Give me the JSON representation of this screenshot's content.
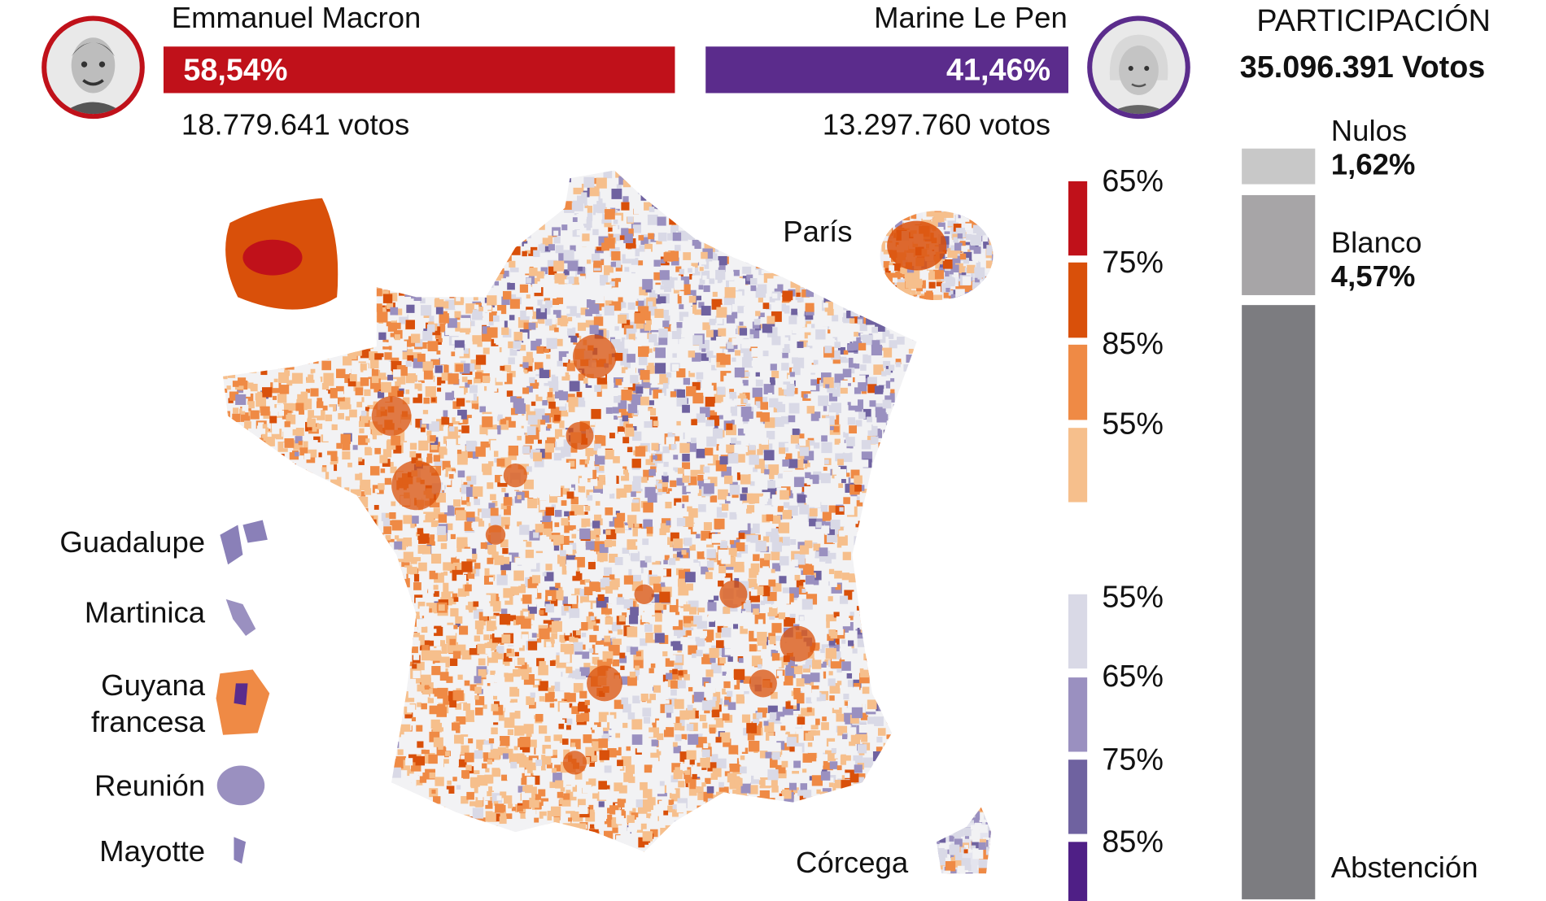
{
  "candidates": {
    "macron": {
      "name": "Emmanuel Macron",
      "percent": "58,54%",
      "votes": "18.779.641 votos",
      "color": "#c0111a",
      "share": 58.54
    },
    "lepen": {
      "name": "Marine Le Pen",
      "percent": "41,46%",
      "votes": "13.297.760 votos",
      "color": "#5b2c8c",
      "share": 41.46
    }
  },
  "participation": {
    "title": "PARTICIPACIÓN",
    "total": "35.096.391 Votos",
    "segments": [
      {
        "label": "Nulos",
        "value": "1,62%",
        "color": "#c8c8c8"
      },
      {
        "label": "Blanco",
        "value": "4,57%",
        "color": "#a7a5a7"
      },
      {
        "label": "Abstención",
        "color": "#7c7c80"
      }
    ]
  },
  "legend": {
    "macron_steps": [
      {
        "label": "65%",
        "color": "#c0111a"
      },
      {
        "label": "75%",
        "color": "#d9500a"
      },
      {
        "label": "85%",
        "color": "#ef8a45"
      },
      {
        "label": "55%",
        "color": "#f6bf8c"
      }
    ],
    "lepen_steps": [
      {
        "label": "55%",
        "color": "#d9d9e6"
      },
      {
        "label": "65%",
        "color": "#9a90c0"
      },
      {
        "label": "75%",
        "color": "#6f62a0"
      },
      {
        "label": "85%",
        "color": "#4f1f86"
      }
    ]
  },
  "map": {
    "paris_label": "París",
    "corsica_label": "Córcega",
    "overseas": [
      {
        "label": "Guadalupe"
      },
      {
        "label": "Martinica"
      },
      {
        "label": "Guyana\nfrancesa",
        "line1": "Guyana",
        "line2": "francesa"
      },
      {
        "label": "Reunión"
      },
      {
        "label": "Mayotte"
      }
    ]
  }
}
